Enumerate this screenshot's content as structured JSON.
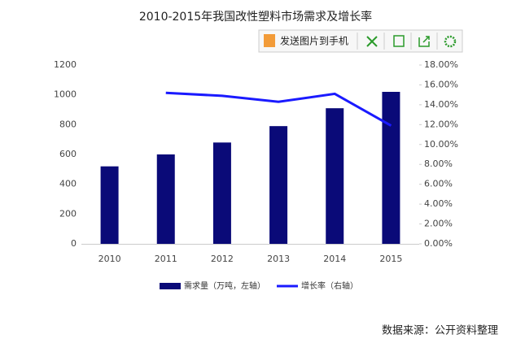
{
  "chart_data": {
    "type": "bar_line",
    "title": "2010-2015年我国改性塑料市场需求及增长率",
    "categories": [
      "2010",
      "2011",
      "2012",
      "2013",
      "2014",
      "2015"
    ],
    "series": [
      {
        "name": "需求量（万吨，左轴）",
        "type": "bar",
        "color": "#0a0a78",
        "values": [
          520,
          600,
          680,
          790,
          910,
          1020
        ]
      },
      {
        "name": "增长率（右轴）",
        "type": "line",
        "axis": "y2",
        "color": "#1a1aff",
        "values": [
          null,
          15.2,
          14.9,
          14.3,
          15.1,
          11.9
        ]
      }
    ],
    "ylim": [
      0,
      1200
    ],
    "yticks": [
      0,
      200,
      400,
      600,
      800,
      1000,
      1200
    ],
    "y2lim": [
      0,
      18
    ],
    "y2ticks": [
      {
        "value": 0,
        "label": "0.00%"
      },
      {
        "value": 2,
        "label": "2.00%"
      },
      {
        "value": 4,
        "label": "4.00%"
      },
      {
        "value": 6,
        "label": "6.00%"
      },
      {
        "value": 8,
        "label": "8.00%"
      },
      {
        "value": 10,
        "label": "10.00%"
      },
      {
        "value": 12,
        "label": "12.00%"
      },
      {
        "value": 14,
        "label": "14.00%"
      },
      {
        "value": 16,
        "label": "16.00%"
      },
      {
        "value": 18,
        "label": "18.00%"
      }
    ],
    "grid": false,
    "source": "数据来源：公开资料整理"
  },
  "toolbar": {
    "send_label": "发送图片到手机"
  }
}
